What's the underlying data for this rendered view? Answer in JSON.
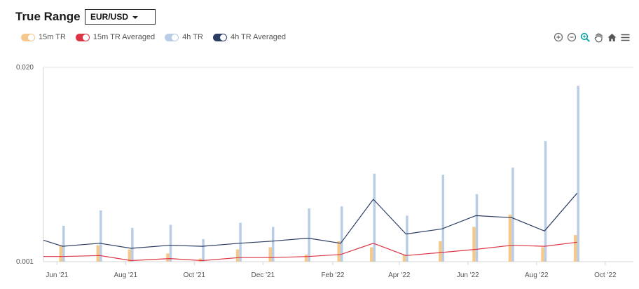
{
  "header": {
    "title": "True Range",
    "pair_selected": "EUR/USD"
  },
  "legend": [
    {
      "label": "15m TR",
      "color": "#f5c88c"
    },
    {
      "label": "15m TR Averaged",
      "color": "#dc3545"
    },
    {
      "label": "4h TR",
      "color": "#b9cde6"
    },
    {
      "label": "4h TR Averaged",
      "color": "#2c3e63"
    }
  ],
  "toolbar": {
    "icons": [
      "zoom-in-icon",
      "zoom-out-icon",
      "zoom-select-icon",
      "pan-icon",
      "home-icon",
      "menu-icon"
    ]
  },
  "chart_data": {
    "type": "bar",
    "ylim": [
      0.001,
      0.02
    ],
    "y_ticks": [
      "0.001",
      "0.020"
    ],
    "x_ticks": [
      "Jun '21",
      "Aug '21",
      "Oct '21",
      "Dec '21",
      "Feb '22",
      "Apr '22",
      "Jun '22",
      "Aug '22",
      "Oct '22"
    ],
    "x_tick_dates": [
      "2021-06-01",
      "2021-08-01",
      "2021-10-01",
      "2021-12-01",
      "2022-02-01",
      "2022-04-01",
      "2022-06-01",
      "2022-08-01",
      "2022-10-01"
    ],
    "xlim": [
      "2021-05-20",
      "2022-10-26"
    ],
    "dates": [
      "2021-05-20",
      "2021-06-06",
      "2021-07-09",
      "2021-08-06",
      "2021-09-09",
      "2021-10-08",
      "2021-11-10",
      "2021-12-09",
      "2022-01-10",
      "2022-02-08",
      "2022-03-09",
      "2022-04-07",
      "2022-05-09",
      "2022-06-08",
      "2022-07-10",
      "2022-08-08",
      "2022-09-06"
    ],
    "series": [
      {
        "name": "15m TR",
        "kind": "bar",
        "color": "#f5c88c",
        "values": [
          null,
          0.0026,
          0.0026,
          0.0022,
          0.0018,
          0.0013,
          0.0022,
          0.0024,
          0.0017,
          0.003,
          0.0024,
          0.0017,
          0.003,
          0.0044,
          0.0056,
          0.0024,
          0.0036
        ]
      },
      {
        "name": "15m TR Averaged",
        "kind": "line",
        "color": "#dc3545",
        "values": [
          0.0015,
          0.0015,
          0.0016,
          0.0011,
          0.0013,
          0.0011,
          0.0014,
          0.0014,
          0.0015,
          0.0017,
          0.0028,
          0.0016,
          0.0019,
          0.0022,
          0.0026,
          0.0025,
          0.0029
        ]
      },
      {
        "name": "4h TR",
        "kind": "bar",
        "color": "#b9cde6",
        "values": [
          null,
          0.0045,
          0.006,
          0.0043,
          0.0046,
          0.0032,
          0.0048,
          0.0044,
          0.0062,
          0.0064,
          0.0096,
          0.0055,
          0.0095,
          0.0076,
          0.0102,
          0.0128,
          0.0182
        ]
      },
      {
        "name": "4h TR Averaged",
        "kind": "line",
        "color": "#2c3e63",
        "values": [
          0.0031,
          0.0025,
          0.0028,
          0.0023,
          0.0026,
          0.0025,
          0.0028,
          0.003,
          0.0033,
          0.0028,
          0.0071,
          0.0037,
          0.0042,
          0.0055,
          0.0053,
          0.004,
          0.0077
        ]
      }
    ]
  }
}
